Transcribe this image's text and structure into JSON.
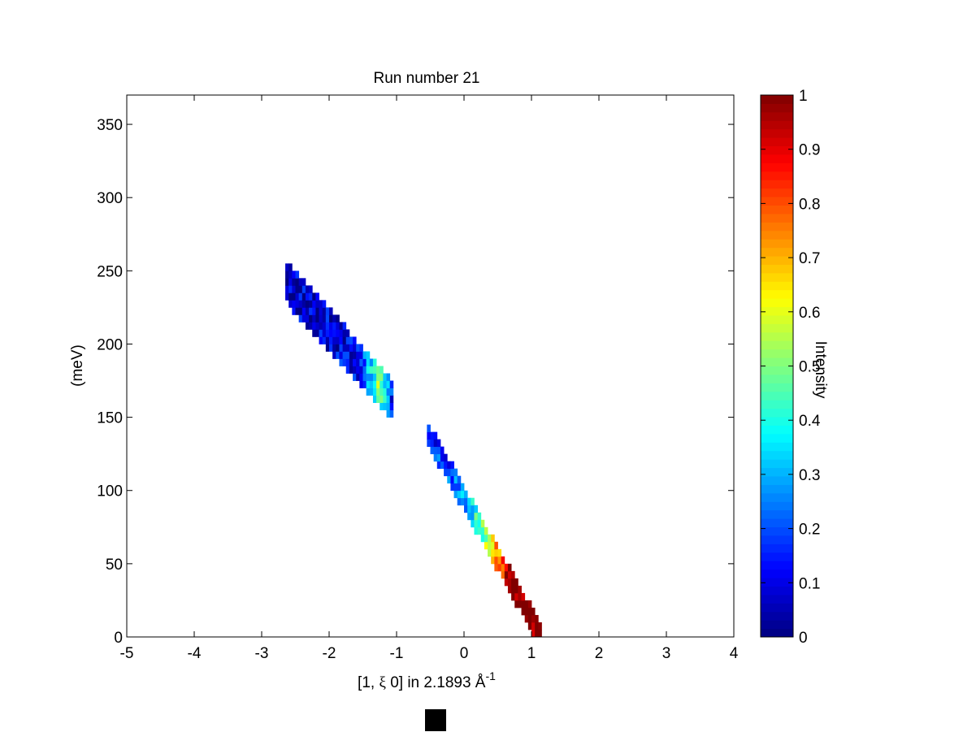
{
  "chart_data": {
    "type": "heatmap",
    "title": "Run number 21",
    "xlabel_parts": [
      "[1, ",
      "ξ",
      " 0] in 2.1893 Å",
      "-1"
    ],
    "ylabel": "(meV)",
    "colorbar_label": "Intensity",
    "xlim": [
      -5,
      4
    ],
    "ylim": [
      0,
      370
    ],
    "x_ticks": [
      -5,
      -4,
      -3,
      -2,
      -1,
      0,
      1,
      2,
      3,
      4
    ],
    "y_ticks": [
      0,
      50,
      100,
      150,
      200,
      250,
      300,
      350
    ],
    "clim": [
      0,
      1
    ],
    "colorbar_ticks": [
      0,
      0.1,
      0.2,
      0.3,
      0.4,
      0.5,
      0.6,
      0.7,
      0.8,
      0.9,
      1
    ],
    "colormap": "jet",
    "grid": false,
    "bin_width_x": 0.05,
    "bin_height_y": 5,
    "branches": [
      {
        "x_range": [
          -2.65,
          -1.1
        ],
        "y_range": [
          242,
          162
        ],
        "band_half_width_y": 12,
        "intensity_profile": [
          {
            "x": -2.65,
            "v": 0.08
          },
          {
            "x": -2.3,
            "v": 0.08
          },
          {
            "x": -1.9,
            "v": 0.1
          },
          {
            "x": -1.6,
            "v": 0.14
          },
          {
            "x": -1.4,
            "v": 0.35
          },
          {
            "x": -1.3,
            "v": 0.5
          },
          {
            "x": -1.1,
            "v": 0.15
          }
        ]
      },
      {
        "x_range": [
          -0.55,
          1.1
        ],
        "y_range": [
          138,
          2
        ],
        "band_half_width_y": 6,
        "intensity_profile": [
          {
            "x": -0.55,
            "v": 0.15
          },
          {
            "x": -0.2,
            "v": 0.2
          },
          {
            "x": 0.0,
            "v": 0.3
          },
          {
            "x": 0.2,
            "v": 0.45
          },
          {
            "x": 0.35,
            "v": 0.6
          },
          {
            "x": 0.5,
            "v": 0.75
          },
          {
            "x": 0.65,
            "v": 1.0
          },
          {
            "x": 1.1,
            "v": 1.0
          }
        ]
      }
    ]
  }
}
